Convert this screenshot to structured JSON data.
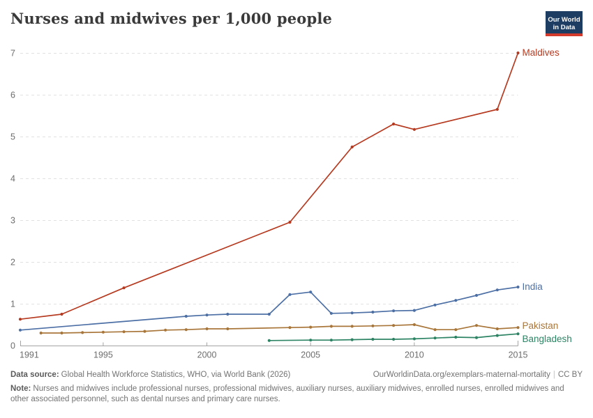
{
  "header": {
    "title": "Nurses and midwives per 1,000 people",
    "logo": {
      "line1": "Our World",
      "line2": "in Data",
      "bg_color": "#1d3d63",
      "bar_color": "#d33a2b"
    }
  },
  "chart_data": {
    "type": "line",
    "title": "Nurses and midwives per 1,000 people",
    "xlabel": "",
    "ylabel": "",
    "xlim": [
      1991,
      2015.4
    ],
    "ylim": [
      0,
      7
    ],
    "x_ticks": [
      1991,
      1995,
      2000,
      2005,
      2010,
      2015
    ],
    "y_ticks": [
      0,
      1,
      2,
      3,
      4,
      5,
      6,
      7
    ],
    "grid": "horizontal-dashed",
    "legend_position": "right-end-of-line",
    "series": [
      {
        "name": "Maldives",
        "color": "#b63a20",
        "label_dy": 0,
        "points": [
          [
            1991,
            0.63
          ],
          [
            1993,
            0.75
          ],
          [
            1996,
            1.38
          ],
          [
            2004,
            2.95
          ],
          [
            2007,
            4.75
          ],
          [
            2009,
            5.3
          ],
          [
            2010,
            5.17
          ],
          [
            2014,
            5.65
          ],
          [
            2015,
            7.0
          ]
        ]
      },
      {
        "name": "India",
        "color": "#4c6fa5",
        "label_dy": 0,
        "points": [
          [
            1991,
            0.37
          ],
          [
            1999,
            0.7
          ],
          [
            2000,
            0.73
          ],
          [
            2001,
            0.75
          ],
          [
            2003,
            0.75
          ],
          [
            2004,
            1.22
          ],
          [
            2005,
            1.28
          ],
          [
            2006,
            0.77
          ],
          [
            2007,
            0.78
          ],
          [
            2008,
            0.8
          ],
          [
            2009,
            0.83
          ],
          [
            2010,
            0.84
          ],
          [
            2011,
            0.97
          ],
          [
            2012,
            1.08
          ],
          [
            2013,
            1.2
          ],
          [
            2014,
            1.33
          ],
          [
            2015,
            1.4
          ]
        ]
      },
      {
        "name": "Pakistan",
        "color": "#a9763a",
        "label_dy": -2,
        "points": [
          [
            1992,
            0.3
          ],
          [
            1993,
            0.3
          ],
          [
            1994,
            0.31
          ],
          [
            1995,
            0.32
          ],
          [
            1996,
            0.33
          ],
          [
            1997,
            0.34
          ],
          [
            1998,
            0.37
          ],
          [
            1999,
            0.38
          ],
          [
            2000,
            0.4
          ],
          [
            2001,
            0.4
          ],
          [
            2004,
            0.43
          ],
          [
            2005,
            0.44
          ],
          [
            2006,
            0.46
          ],
          [
            2007,
            0.46
          ],
          [
            2008,
            0.47
          ],
          [
            2009,
            0.48
          ],
          [
            2010,
            0.5
          ],
          [
            2011,
            0.38
          ],
          [
            2012,
            0.38
          ],
          [
            2013,
            0.48
          ],
          [
            2014,
            0.4
          ],
          [
            2015,
            0.43
          ]
        ]
      },
      {
        "name": "Bangladesh",
        "color": "#2d8465",
        "label_dy": 8,
        "points": [
          [
            2003,
            0.12
          ],
          [
            2005,
            0.13
          ],
          [
            2006,
            0.13
          ],
          [
            2007,
            0.14
          ],
          [
            2008,
            0.15
          ],
          [
            2009,
            0.15
          ],
          [
            2010,
            0.16
          ],
          [
            2011,
            0.18
          ],
          [
            2012,
            0.2
          ],
          [
            2013,
            0.19
          ],
          [
            2014,
            0.24
          ],
          [
            2015,
            0.28
          ]
        ]
      }
    ],
    "style": {
      "grid_color": "#e1e1e1",
      "axis_color": "#a3a3a3",
      "tick_label_color": "#6d6d6d"
    }
  },
  "footer": {
    "data_source_label": "Data source:",
    "data_source": "Global Health Workforce Statistics, WHO, via World Bank (2026)",
    "link": "OurWorldinData.org/exemplars-maternal-mortality",
    "separator": "|",
    "license": "CC BY",
    "note_label": "Note:",
    "note": "Nurses and midwives include professional nurses, professional midwives, auxiliary nurses, auxiliary midwives, enrolled nurses, enrolled midwives and other associated personnel, such as dental nurses and primary care nurses."
  }
}
